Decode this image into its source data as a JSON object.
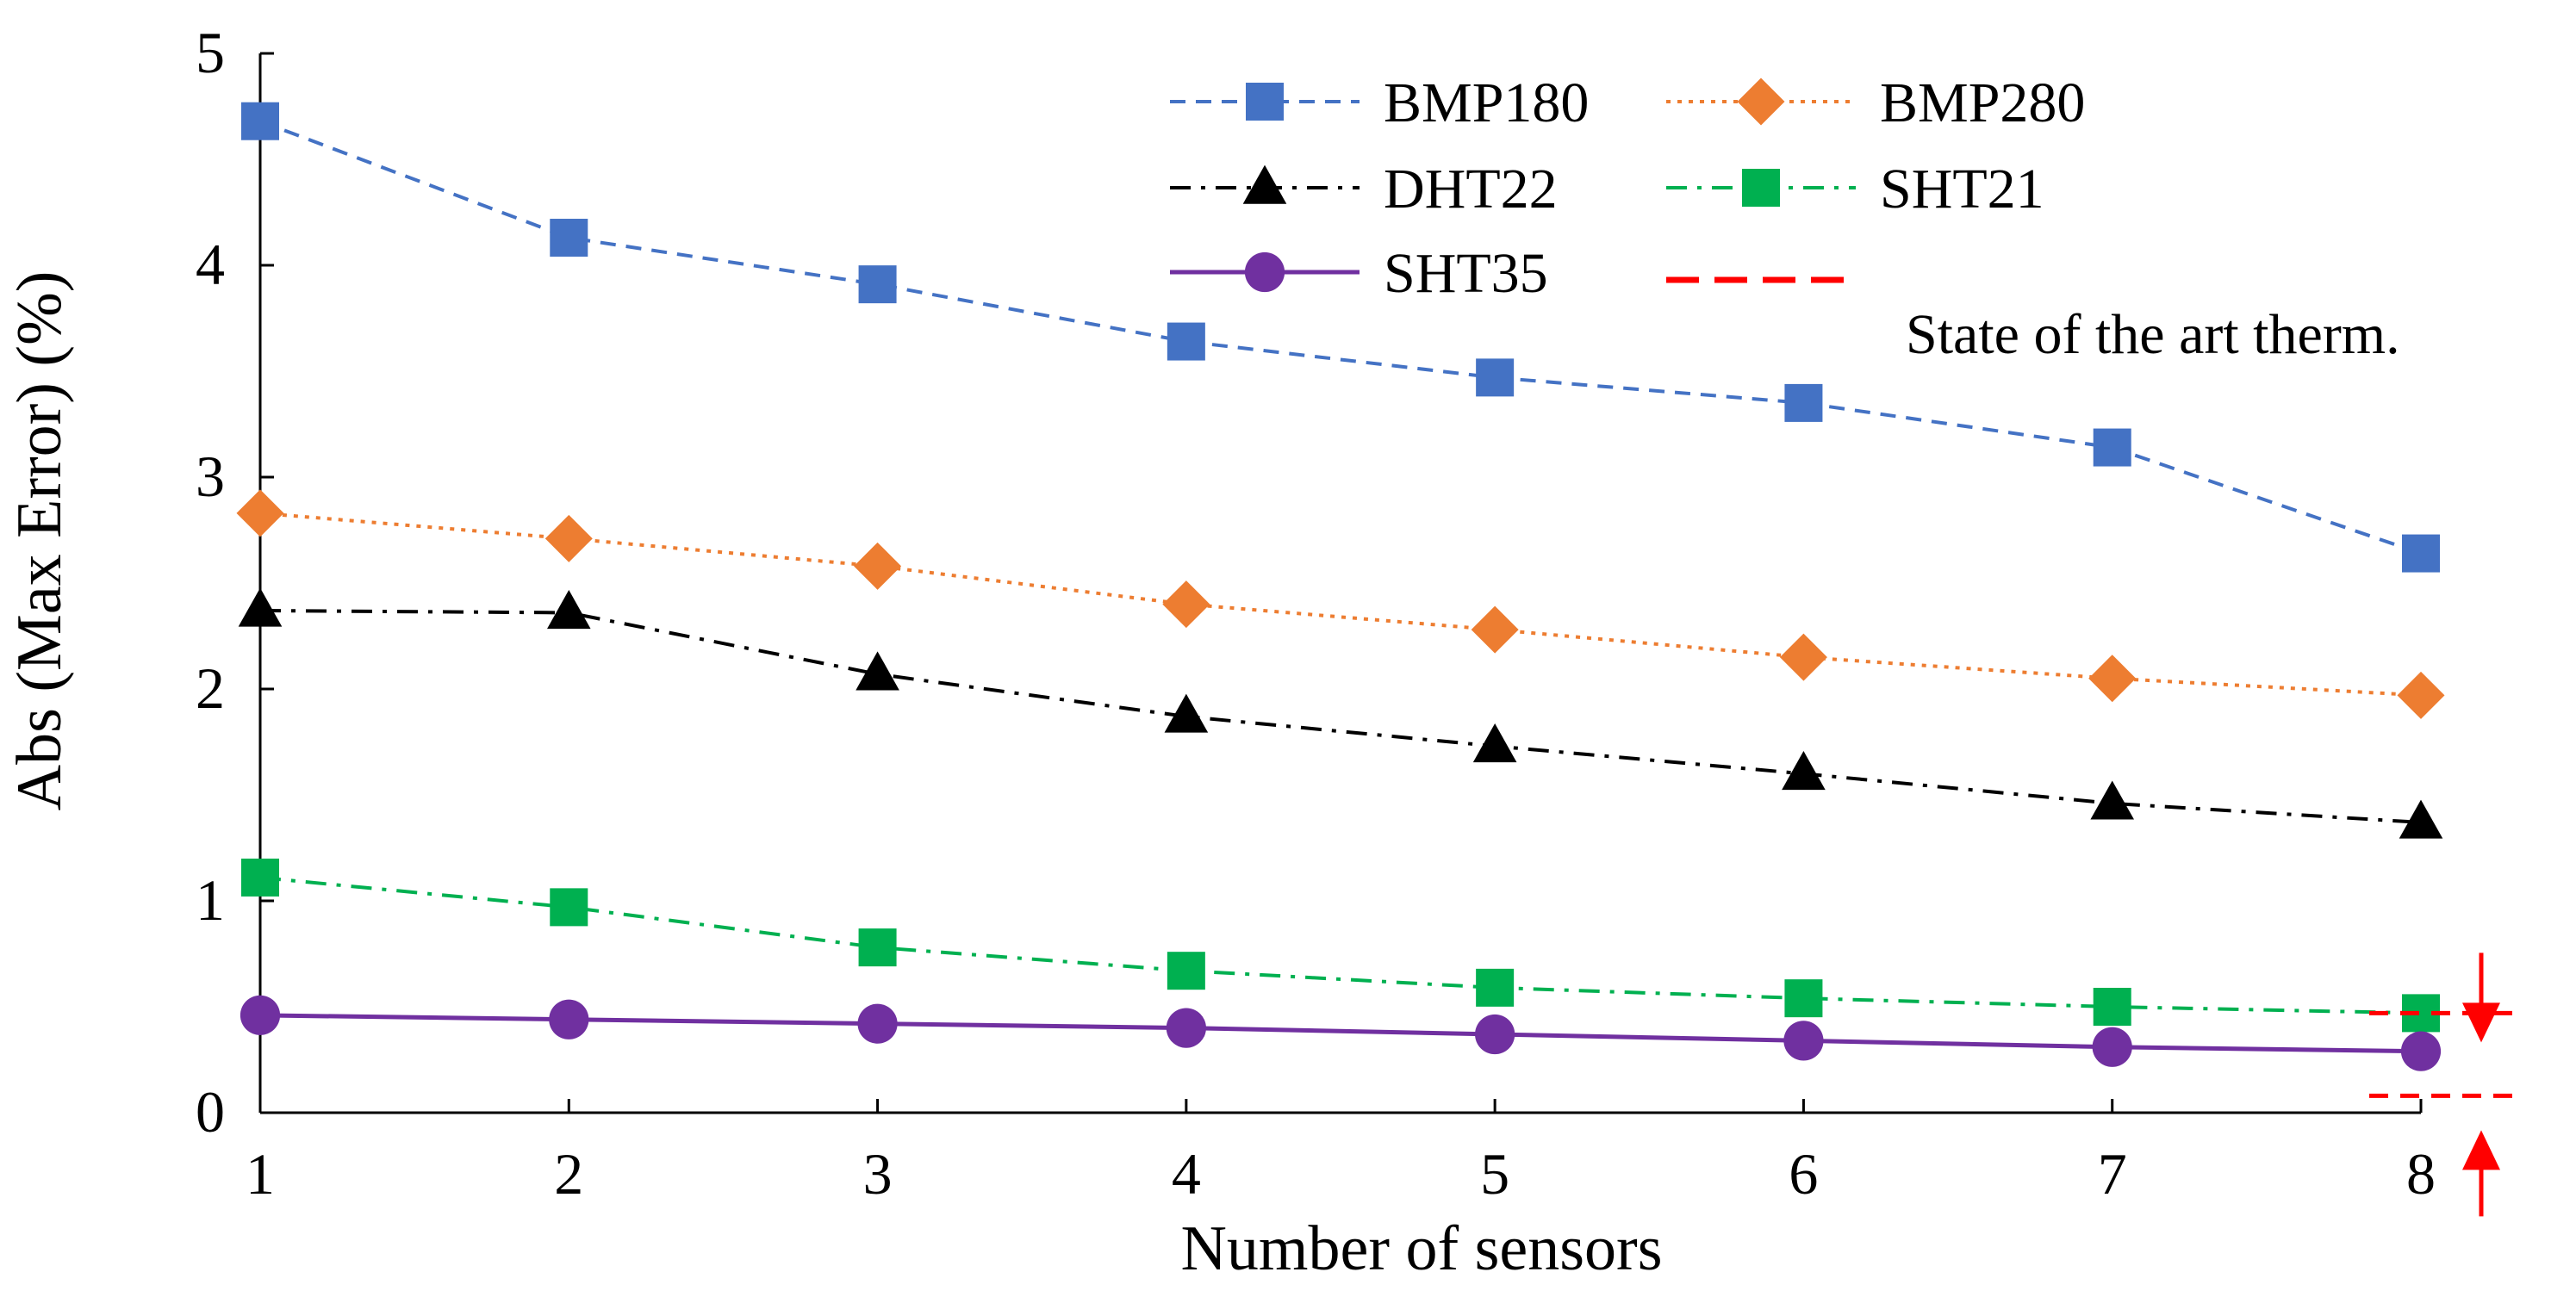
{
  "chart_data": {
    "type": "line",
    "title": "",
    "xlabel": "Number of sensors",
    "ylabel": "Abs (Max Error) (%)",
    "x": [
      1,
      2,
      3,
      4,
      5,
      6,
      7,
      8
    ],
    "xlim": [
      1,
      8
    ],
    "ylim": [
      0,
      5
    ],
    "xticks": [
      "1",
      "2",
      "3",
      "4",
      "5",
      "6",
      "7",
      "8"
    ],
    "yticks": [
      "0",
      "1",
      "2",
      "3",
      "4",
      "5"
    ],
    "grid": false,
    "legend_position": "top-right",
    "series": [
      {
        "name": "BMP180",
        "color": "#4472C4",
        "marker": "square",
        "dash": "dashed",
        "values": [
          4.68,
          4.13,
          3.91,
          3.64,
          3.47,
          3.35,
          3.14,
          2.64
        ]
      },
      {
        "name": "BMP280",
        "color": "#ED7D31",
        "marker": "diamond",
        "dash": "dotted",
        "values": [
          2.83,
          2.71,
          2.58,
          2.4,
          2.28,
          2.15,
          2.05,
          1.97
        ]
      },
      {
        "name": "DHT22",
        "color": "#000000",
        "marker": "triangle",
        "dash": "dashdot",
        "values": [
          2.37,
          2.36,
          2.07,
          1.87,
          1.73,
          1.6,
          1.46,
          1.37
        ]
      },
      {
        "name": "SHT21",
        "color": "#00B050",
        "marker": "square",
        "dash": "dashdot",
        "values": [
          1.11,
          0.97,
          0.78,
          0.67,
          0.59,
          0.54,
          0.5,
          0.47
        ]
      },
      {
        "name": "SHT35",
        "color": "#7030A0",
        "marker": "circle",
        "dash": "solid",
        "values": [
          0.46,
          0.44,
          0.42,
          0.4,
          0.37,
          0.34,
          0.31,
          0.29
        ]
      }
    ],
    "reference": {
      "name": "State of the art therm.",
      "color": "#FF0000",
      "dash": "dashed",
      "band": [
        0.08,
        0.47
      ]
    }
  }
}
